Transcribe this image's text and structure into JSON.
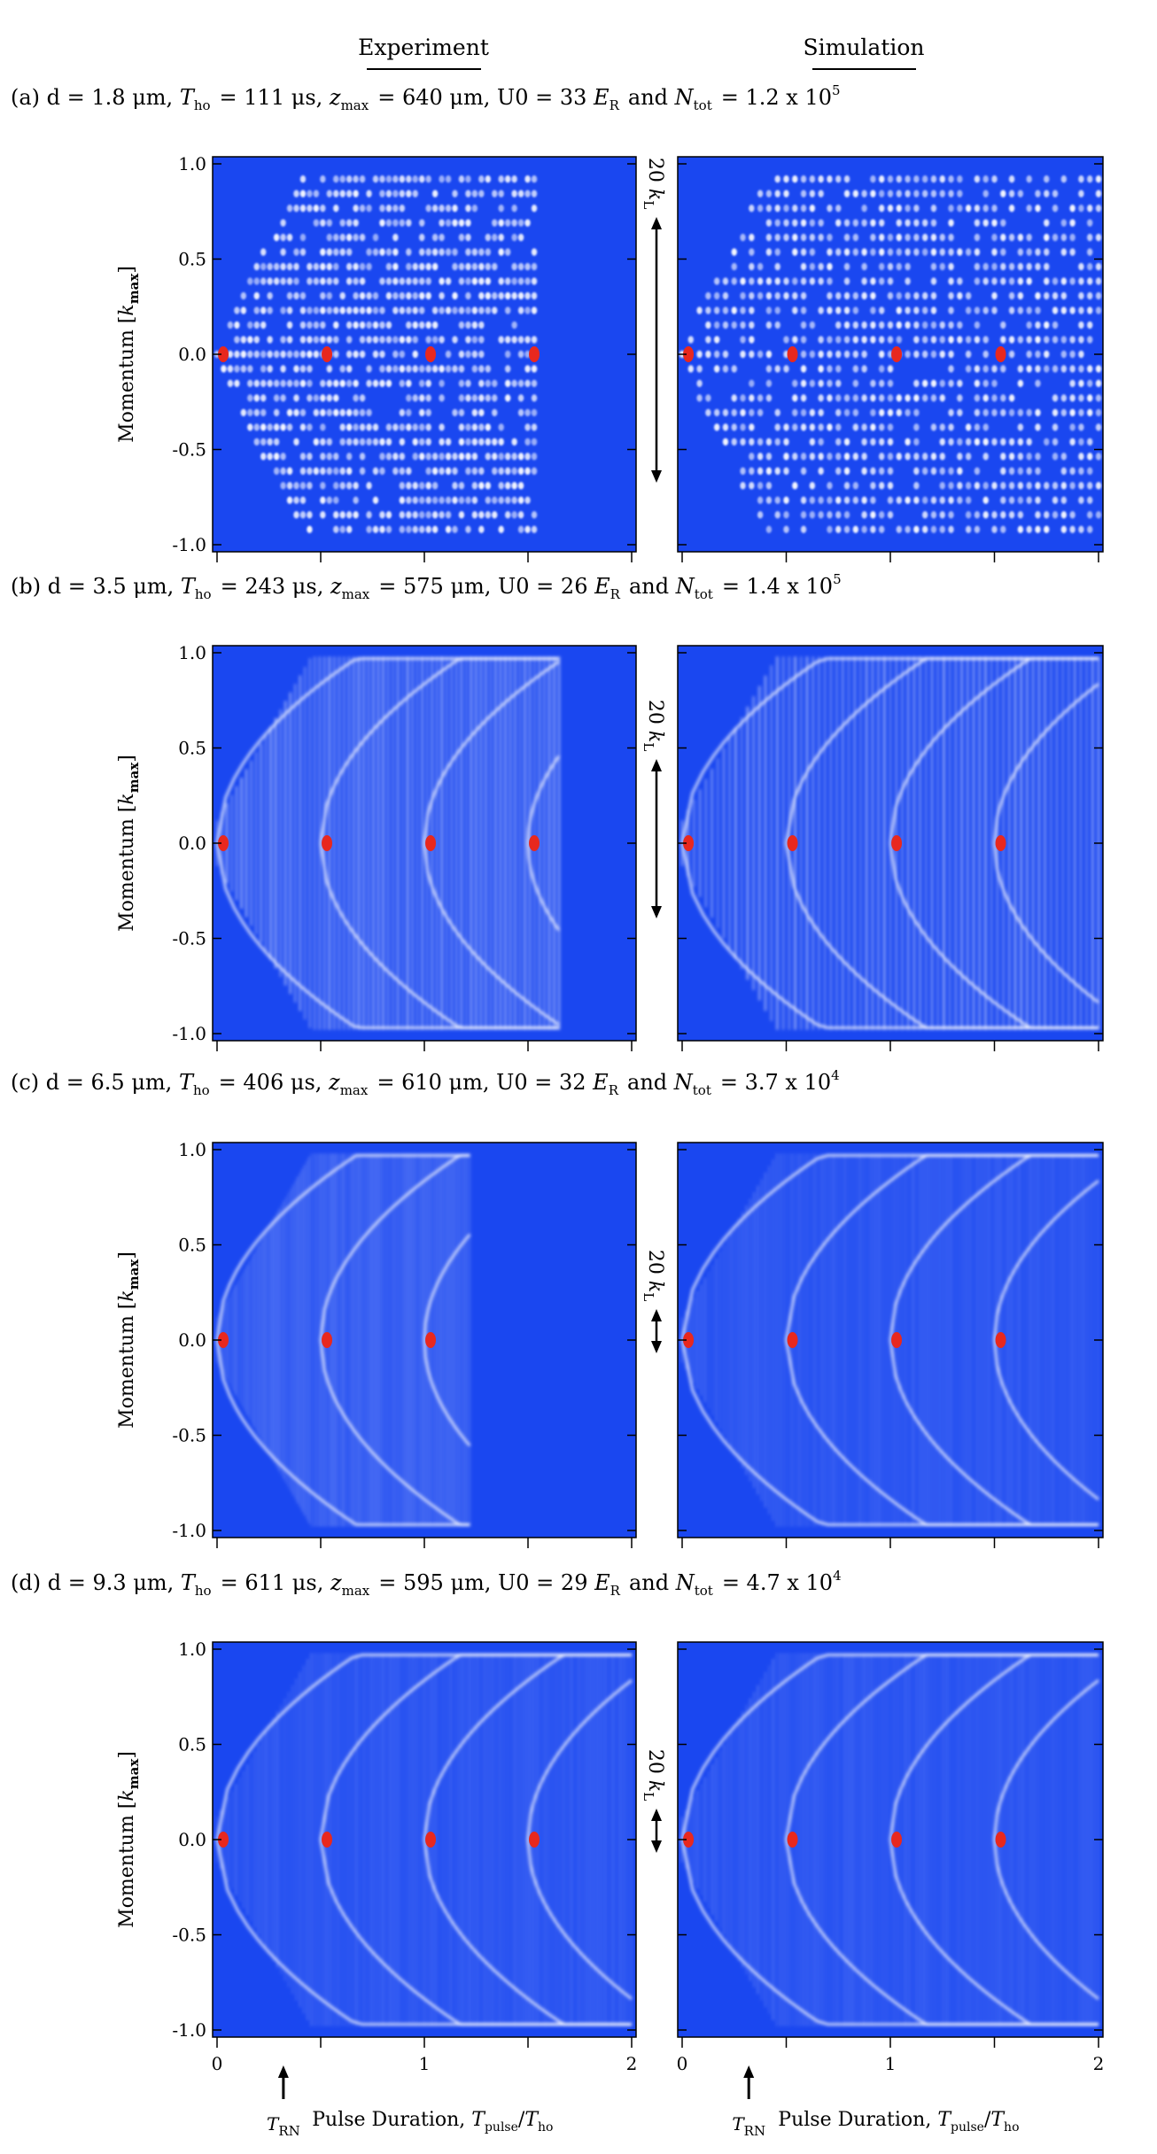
{
  "columns": {
    "left": "Experiment",
    "right": "Simulation"
  },
  "chart_data": [
    {
      "type": "heatmap",
      "panel": "(a)",
      "caption": "(a) d = 1.8 μm, T_ho = 111 μs, z_max = 640 μm, U0 = 33 E_R and N_tot = 1.2 x 10^5",
      "params": {
        "d": "1.8 μm",
        "T_ho": "111 μs",
        "z_max": "640 μm",
        "U0": "33 E_R",
        "N_tot": "1.2 x 10^5"
      },
      "ylabel": "Momentum [k_max]",
      "xlabel": "",
      "scale_bar": "20 k_L",
      "xlim": [
        0,
        2
      ],
      "ylim": [
        -1.0,
        1.0
      ],
      "yticks": [
        "1.0",
        "0.5",
        "0.0",
        "-0.5",
        "-1.0"
      ],
      "xticks": [],
      "pattern": "dots",
      "exp_tmax": 1.53,
      "colors": {
        "background": "#1a47f0",
        "feature": "#ffffff",
        "peak": "#e8281e"
      }
    },
    {
      "type": "heatmap",
      "panel": "(b)",
      "caption": "(b) d = 3.5 μm, T_ho = 243 μs, z_max = 575 μm, U0 = 26 E_R and N_tot = 1.4 x 10^5",
      "params": {
        "d": "3.5 μm",
        "T_ho": "243 μs",
        "z_max": "575 μm",
        "U0": "26 E_R",
        "N_tot": "1.4 x 10^5"
      },
      "ylabel": "Momentum [k_max]",
      "xlabel": "",
      "scale_bar": "20 k_L",
      "xlim": [
        0,
        2
      ],
      "ylim": [
        -1.0,
        1.0
      ],
      "yticks": [
        "1.0",
        "0.5",
        "0.0",
        "-0.5",
        "-1.0"
      ],
      "xticks": [],
      "pattern": "stripes",
      "exp_tmax": 1.65,
      "colors": {
        "background": "#1a47f0",
        "feature": "#ffffff",
        "peak": "#e8281e"
      }
    },
    {
      "type": "heatmap",
      "panel": "(c)",
      "caption": "(c) d = 6.5 μm, T_ho = 406 μs, z_max = 610 μm, U0 = 32 E_R and N_tot = 3.7 x 10^4",
      "params": {
        "d": "6.5 μm",
        "T_ho": "406 μs",
        "z_max": "610 μm",
        "U0": "32 E_R",
        "N_tot": "3.7 x 10^4"
      },
      "ylabel": "Momentum [k_max]",
      "xlabel": "",
      "scale_bar": "20 k_L",
      "xlim": [
        0,
        2
      ],
      "ylim": [
        -1.0,
        1.0
      ],
      "yticks": [
        "1.0",
        "0.5",
        "0.0",
        "-0.5",
        "-1.0"
      ],
      "xticks": [],
      "pattern": "fine",
      "exp_tmax": 1.22,
      "colors": {
        "background": "#1a47f0",
        "feature": "#ffffff",
        "peak": "#e8281e"
      }
    },
    {
      "type": "heatmap",
      "panel": "(d)",
      "caption": "(d) d = 9.3 μm, T_ho = 611 μs, z_max = 595 μm, U0 = 29 E_R and N_tot = 4.7 x 10^4",
      "params": {
        "d": "9.3 μm",
        "T_ho": "611 μs",
        "z_max": "595 μm",
        "U0": "29 E_R",
        "N_tot": "4.7 x 10^4"
      },
      "ylabel": "Momentum [k_max]",
      "xlabel": "Pulse Duration, T_pulse/T_ho",
      "scale_bar": "20 k_L",
      "xlim": [
        0,
        2
      ],
      "ylim": [
        -1.0,
        1.0
      ],
      "yticks": [
        "1.0",
        "0.5",
        "0.0",
        "-0.5",
        "-1.0"
      ],
      "xticks": [
        "0",
        "1",
        "2"
      ],
      "pattern": "fine",
      "exp_tmax": 2.0,
      "marker": {
        "label": "T_RN",
        "x": 0.32
      },
      "colors": {
        "background": "#1a47f0",
        "feature": "#ffffff",
        "peak": "#e8281e"
      }
    }
  ]
}
